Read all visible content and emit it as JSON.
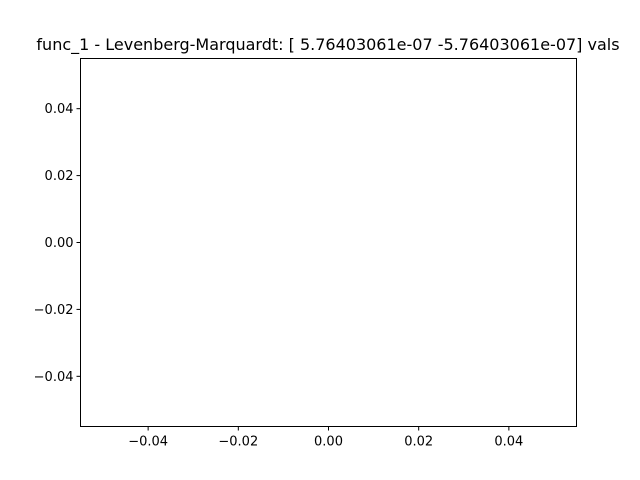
{
  "chart_data": {
    "type": "line",
    "title": "func_1 - Levenberg-Marquardt: [ 5.76403061e-07 -5.76403061e-07] vals",
    "xlabel": "",
    "ylabel": "",
    "xlim": [
      -0.055,
      0.055
    ],
    "ylim": [
      -0.055,
      0.055
    ],
    "grid": false,
    "series": [],
    "x_ticks": [
      {
        "value": -0.04,
        "label": "−0.04"
      },
      {
        "value": -0.02,
        "label": "−0.02"
      },
      {
        "value": 0.0,
        "label": "0.00"
      },
      {
        "value": 0.02,
        "label": "0.02"
      },
      {
        "value": 0.04,
        "label": "0.04"
      }
    ],
    "y_ticks": [
      {
        "value": 0.04,
        "label": "0.04"
      },
      {
        "value": 0.02,
        "label": "0.02"
      },
      {
        "value": 0.0,
        "label": "0.00"
      },
      {
        "value": -0.02,
        "label": "−0.02"
      },
      {
        "value": -0.04,
        "label": "−0.04"
      }
    ],
    "colors": {
      "axes": "#000000",
      "background": "#ffffff"
    }
  }
}
